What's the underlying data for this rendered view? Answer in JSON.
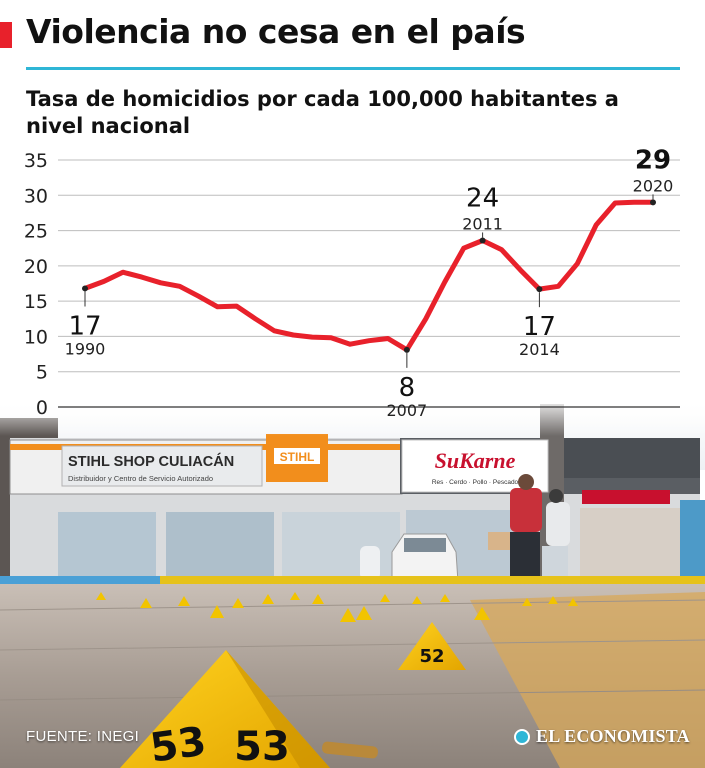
{
  "header": {
    "headline": "Violencia no cesa en el país",
    "accent_color": "#e8212b",
    "rule_color": "#2fb6d6"
  },
  "chart_data": {
    "type": "line",
    "title": "Tasa de homicidios por cada 100,000 habitantes a nivel nacional",
    "xlabel": "",
    "ylabel": "",
    "ylim": [
      0,
      35
    ],
    "yticks": [
      "0",
      "5",
      "10",
      "15",
      "20",
      "25",
      "30",
      "35"
    ],
    "grid": true,
    "line_color": "#e8212b",
    "x": [
      1990,
      1991,
      1992,
      1993,
      1994,
      1995,
      1996,
      1997,
      1998,
      1999,
      2000,
      2001,
      2002,
      2003,
      2004,
      2005,
      2006,
      2007,
      2008,
      2009,
      2010,
      2011,
      2012,
      2013,
      2014,
      2015,
      2016,
      2017,
      2018,
      2019,
      2020
    ],
    "values": [
      16.8,
      17.8,
      19.1,
      18.4,
      17.6,
      17.1,
      15.7,
      14.2,
      14.3,
      12.5,
      10.8,
      10.2,
      9.9,
      9.8,
      8.9,
      9.4,
      9.7,
      8.1,
      12.5,
      17.7,
      22.5,
      23.6,
      22.3,
      19.4,
      16.7,
      17.1,
      20.3,
      25.8,
      28.9,
      29.0,
      29.0
    ],
    "annotations": [
      {
        "value": "17",
        "year": "1990",
        "x": 1990,
        "y": 16.8,
        "position": "below"
      },
      {
        "value": "8",
        "year": "2007",
        "x": 2007,
        "y": 8.1,
        "position": "below"
      },
      {
        "value": "24",
        "year": "2011",
        "x": 2011,
        "y": 23.6,
        "position": "above"
      },
      {
        "value": "17",
        "year": "2014",
        "x": 2014,
        "y": 16.7,
        "position": "below"
      },
      {
        "value": "29",
        "year": "2020",
        "x": 2020,
        "y": 29.0,
        "position": "above",
        "emphasis": true
      }
    ]
  },
  "footer": {
    "source": "FUENTE: INEGI",
    "publisher": "EL ECONOMISTA"
  },
  "photo": {
    "store_sign_1": "STIHL SHOP CULIACÁN",
    "store_sign_1_sub": "Distribuidor y Centro de Servicio Autorizado",
    "store_sign_1_badge": "STIHL",
    "store_sign_2": "SuKarne",
    "store_sign_2_sub": "Res · Cerdo · Pollo · Pescado",
    "marker_1": "52",
    "marker_2": "53",
    "marker_3": "53"
  }
}
